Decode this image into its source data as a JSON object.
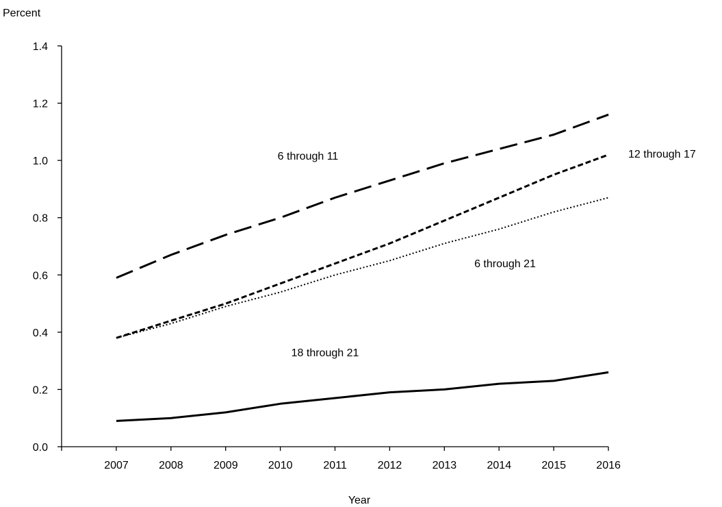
{
  "chart_data": {
    "type": "line",
    "title": "",
    "xlabel": "Year",
    "ylabel": "Percent",
    "x": [
      2007,
      2008,
      2009,
      2010,
      2011,
      2012,
      2013,
      2014,
      2015,
      2016
    ],
    "xtick_labels": [
      "2007",
      "2008",
      "2009",
      "2010",
      "2011",
      "2012",
      "2013",
      "2014",
      "2015",
      "2016"
    ],
    "ylim": [
      0,
      1.4
    ],
    "yticks": [
      0,
      0.2,
      0.4,
      0.6,
      0.8,
      1.0,
      1.2,
      1.4
    ],
    "ytick_labels": [
      "0.0",
      "0.2",
      "0.4",
      "0.6",
      "0.8",
      "1.0",
      "1.2",
      "1.4"
    ],
    "grid": false,
    "legend": "none",
    "series": [
      {
        "name": "6 through 11",
        "dash": "long-dash",
        "color": "#000000",
        "values": [
          0.59,
          0.67,
          0.74,
          0.8,
          0.87,
          0.93,
          0.99,
          1.04,
          1.09,
          1.16
        ]
      },
      {
        "name": "12 through 17",
        "dash": "short-dash",
        "color": "#000000",
        "values": [
          0.38,
          0.44,
          0.5,
          0.57,
          0.64,
          0.71,
          0.79,
          0.87,
          0.95,
          1.02
        ]
      },
      {
        "name": "6 through 21",
        "dash": "dotted",
        "color": "#000000",
        "values": [
          0.38,
          0.43,
          0.49,
          0.54,
          0.6,
          0.65,
          0.71,
          0.76,
          0.82,
          0.87
        ]
      },
      {
        "name": "18 through 21",
        "dash": "solid",
        "color": "#000000",
        "values": [
          0.09,
          0.1,
          0.12,
          0.15,
          0.17,
          0.19,
          0.2,
          0.22,
          0.23,
          0.26
        ]
      }
    ]
  }
}
